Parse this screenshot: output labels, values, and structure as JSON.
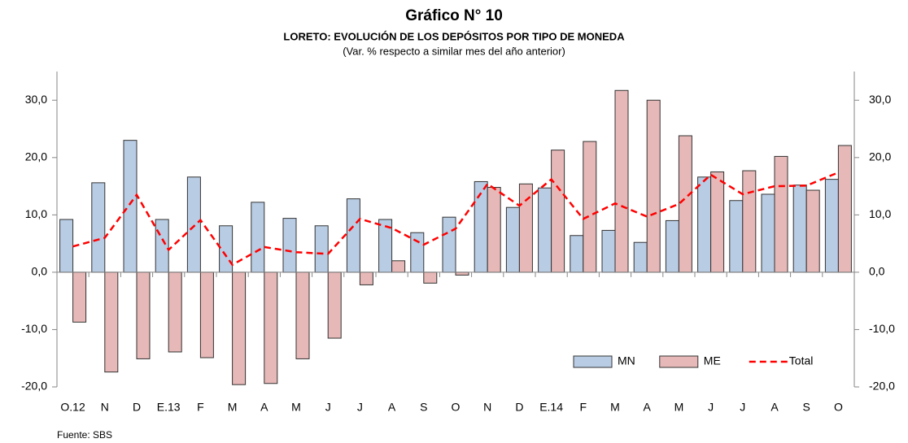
{
  "chart_data": {
    "type": "bar",
    "title": "Gráfico N° 10",
    "subtitle": "LORETO: EVOLUCIÓN DE LOS DEPÓSITOS POR TIPO DE MONEDA",
    "subtitle2": "(Var. % respecto a similar mes del año anterior)",
    "source": "Fuente: SBS",
    "categories": [
      "O.12",
      "N",
      "D",
      "E.13",
      "F",
      "M",
      "A",
      "M",
      "J",
      "J",
      "A",
      "S",
      "O",
      "N",
      "D",
      "E.14",
      "F",
      "M",
      "A",
      "M",
      "J",
      "J",
      "A",
      "S",
      "O"
    ],
    "series": [
      {
        "name": "MN",
        "type": "bar",
        "color": "#b8cce4",
        "values": [
          9.2,
          15.6,
          23.0,
          9.2,
          16.6,
          8.1,
          12.2,
          9.4,
          8.1,
          12.8,
          9.2,
          6.9,
          9.6,
          15.8,
          11.3,
          14.7,
          6.4,
          7.3,
          5.2,
          9.0,
          16.6,
          12.5,
          13.6,
          15.2,
          16.2
        ]
      },
      {
        "name": "ME",
        "type": "bar",
        "color": "#e6b8b7",
        "values": [
          -8.7,
          -17.4,
          -15.1,
          -13.9,
          -14.9,
          -19.6,
          -19.4,
          -15.1,
          -11.5,
          -2.2,
          2.0,
          -1.9,
          -0.5,
          14.8,
          15.4,
          21.3,
          22.8,
          31.7,
          30.0,
          23.8,
          17.5,
          17.7,
          20.2,
          14.3,
          22.1
        ]
      },
      {
        "name": "Total",
        "type": "line",
        "color": "#ff0000",
        "values": [
          4.5,
          6.0,
          13.5,
          3.9,
          9.1,
          1.3,
          4.4,
          3.5,
          3.2,
          9.3,
          7.7,
          4.8,
          7.6,
          15.4,
          11.6,
          16.2,
          9.3,
          12.0,
          9.7,
          11.9,
          17.0,
          13.6,
          15.0,
          15.1,
          17.4
        ]
      }
    ],
    "ylim": [
      -20,
      35
    ],
    "yticks": [
      {
        "value": -20,
        "label": "-20,0"
      },
      {
        "value": -10,
        "label": "-10,0"
      },
      {
        "value": 0,
        "label": "0,0"
      },
      {
        "value": 10,
        "label": "10,0"
      },
      {
        "value": 20,
        "label": "20,0"
      },
      {
        "value": 30,
        "label": "30,0"
      }
    ],
    "y2lim": [
      -20,
      35
    ],
    "y2ticks": [
      {
        "value": -20,
        "label": "-20,0"
      },
      {
        "value": -10,
        "label": "-10,0"
      },
      {
        "value": 0,
        "label": "0,0"
      },
      {
        "value": 10,
        "label": "10,0"
      },
      {
        "value": 20,
        "label": "20,0"
      },
      {
        "value": 30,
        "label": "30,0"
      }
    ],
    "legend": "lower right"
  }
}
